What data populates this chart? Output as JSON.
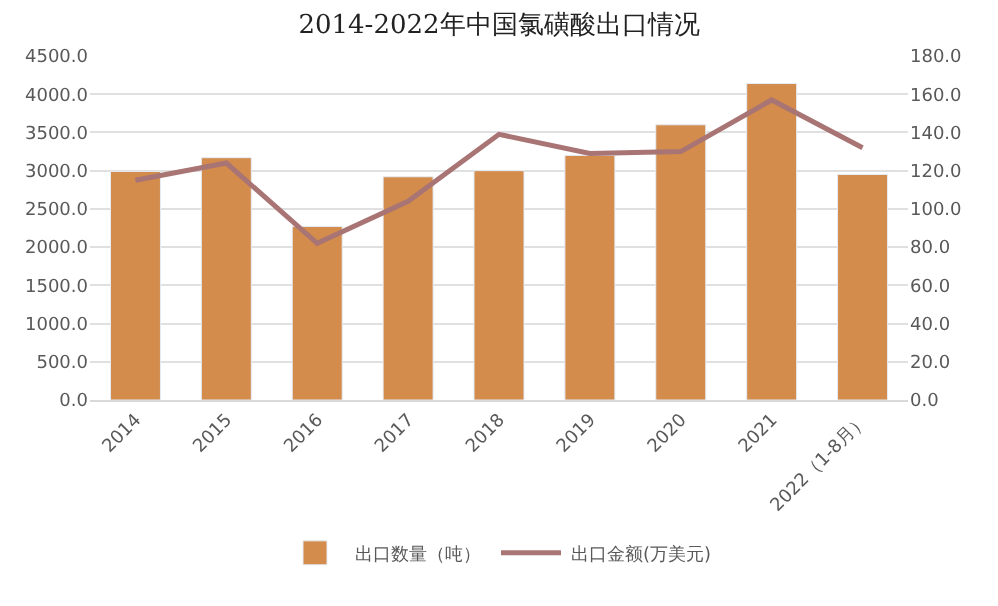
{
  "chart_data": {
    "type": "bar",
    "title": "2014-2022年中国氯磺酸出口情况",
    "categories": [
      "2014",
      "2015",
      "2016",
      "2017",
      "2018",
      "2019",
      "2020",
      "2021",
      "2022（1-8月）"
    ],
    "series": [
      {
        "name": "出口数量（吨）",
        "color": "#d38c4c",
        "values": [
          2990,
          3170,
          2270,
          2920,
          3000,
          3200,
          3600,
          4140,
          2950
        ]
      },
      {
        "name": "出口金额(万美元)",
        "type": "line",
        "axis": "y2",
        "color": "#a87474",
        "values": [
          115,
          124,
          82,
          104,
          139,
          129,
          130,
          157,
          132
        ]
      }
    ],
    "ylim": [
      0,
      4500
    ],
    "yticks": [
      {
        "value": 0,
        "label": "0.0"
      },
      {
        "value": 500,
        "label": "500.0"
      },
      {
        "value": 1000,
        "label": "1000.0"
      },
      {
        "value": 1500,
        "label": "1500.0"
      },
      {
        "value": 2000,
        "label": "2000.0"
      },
      {
        "value": 2500,
        "label": "2500.0"
      },
      {
        "value": 3000,
        "label": "3000.0"
      },
      {
        "value": 3500,
        "label": "3500.0"
      },
      {
        "value": 4000,
        "label": "4000.0"
      },
      {
        "value": 4500,
        "label": "4500.0"
      }
    ],
    "y2lim": [
      0,
      180
    ],
    "y2ticks": [
      {
        "value": 0,
        "label": "0.0"
      },
      {
        "value": 20,
        "label": "20.0"
      },
      {
        "value": 40,
        "label": "40.0"
      },
      {
        "value": 60,
        "label": "60.0"
      },
      {
        "value": 80,
        "label": "80.0"
      },
      {
        "value": 100,
        "label": "100.0"
      },
      {
        "value": 120,
        "label": "120.0"
      },
      {
        "value": 140,
        "label": "140.0"
      },
      {
        "value": 160,
        "label": "160.0"
      },
      {
        "value": 180,
        "label": "180.0"
      }
    ],
    "grid": "y",
    "legend": "bottom",
    "marker": "none",
    "line_style": "solid"
  }
}
